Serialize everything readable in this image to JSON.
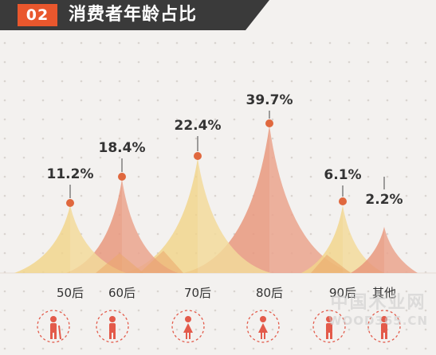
{
  "header": {
    "badge": "02",
    "title": "消费者年龄占比"
  },
  "chart_data": {
    "type": "area",
    "title": "消费者年龄占比",
    "categories": [
      "50后",
      "60后",
      "70后",
      "80后",
      "90后",
      "其他"
    ],
    "values": [
      11.2,
      18.4,
      22.4,
      39.7,
      6.1,
      2.2
    ],
    "value_labels": [
      "11.2%",
      "18.4%",
      "22.4%",
      "39.7%",
      "6.1%",
      "2.2%"
    ],
    "unit": "%",
    "grid": false,
    "colors": {
      "yellow": "#f2d48a",
      "salmon": "#e8957a",
      "orange": "#eba86c",
      "dot": "#e0683e",
      "icon": "#e35a4a",
      "header": "#3a3a3a",
      "badge": "#e9572d"
    }
  },
  "icons": [
    "elderly-icon",
    "senior-icon",
    "woman-icon",
    "girl-icon",
    "boy-icon",
    "child-icon"
  ],
  "watermark": {
    "cn": "中国木业网",
    "en": "WOOD365.CN"
  }
}
